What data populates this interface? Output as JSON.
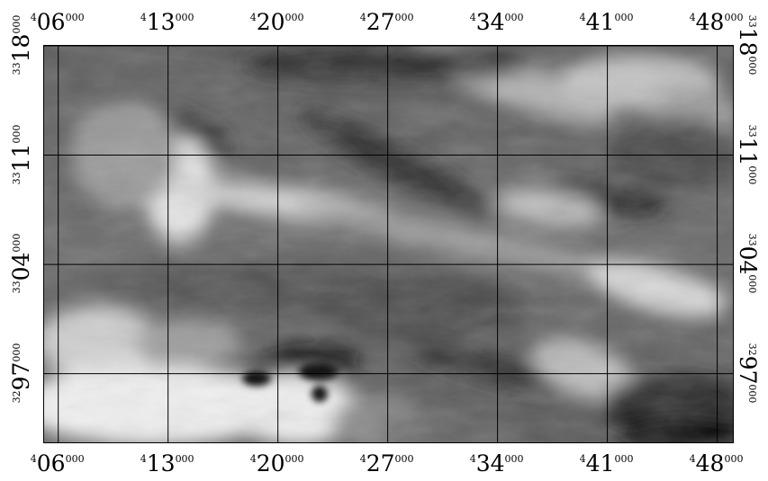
{
  "map": {
    "type": "grayscale raster",
    "grid": "on",
    "x_ticks": [
      {
        "value": 406000,
        "pre": "4",
        "big": "06",
        "suf": "000"
      },
      {
        "value": 413000,
        "pre": "4",
        "big": "13",
        "suf": "000"
      },
      {
        "value": 420000,
        "pre": "4",
        "big": "20",
        "suf": "000"
      },
      {
        "value": 427000,
        "pre": "4",
        "big": "27",
        "suf": "000"
      },
      {
        "value": 434000,
        "pre": "4",
        "big": "34",
        "suf": "000"
      },
      {
        "value": 441000,
        "pre": "4",
        "big": "41",
        "suf": "000"
      },
      {
        "value": 448000,
        "pre": "4",
        "big": "48",
        "suf": "000"
      }
    ],
    "y_ticks": [
      {
        "value": 3318000,
        "pre": "33",
        "big": "18",
        "suf": "000"
      },
      {
        "value": 3311000,
        "pre": "33",
        "big": "11",
        "suf": "000"
      },
      {
        "value": 3304000,
        "pre": "33",
        "big": "04",
        "suf": "000"
      },
      {
        "value": 3297000,
        "pre": "32",
        "big": "97",
        "suf": "000"
      }
    ],
    "x_range": [
      405100,
      449000
    ],
    "y_range": [
      3292600,
      3318000
    ]
  }
}
